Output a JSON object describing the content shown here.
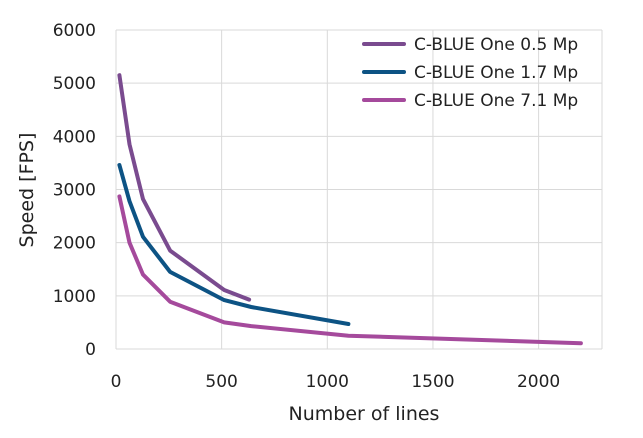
{
  "chart_data": {
    "type": "line",
    "title": "",
    "xlabel": "Number of lines",
    "ylabel": "Speed [FPS]",
    "xlim": [
      0,
      2300
    ],
    "ylim": [
      0,
      6000
    ],
    "x_ticks": [
      0,
      500,
      1000,
      1500,
      2000
    ],
    "y_ticks": [
      0,
      1000,
      2000,
      3000,
      4000,
      5000,
      6000
    ],
    "grid": true,
    "legend_position": "top-right",
    "series": [
      {
        "name": "C-BLUE One 0.5 Mp",
        "color": "#7a4b8f",
        "x": [
          16,
          64,
          128,
          256,
          512,
          630
        ],
        "y": [
          5150,
          3850,
          2820,
          1850,
          1110,
          930
        ]
      },
      {
        "name": "C-BLUE One 1.7 Mp",
        "color": "#0d5384",
        "x": [
          16,
          64,
          128,
          256,
          512,
          640,
          1100
        ],
        "y": [
          3460,
          2780,
          2110,
          1450,
          920,
          790,
          470
        ]
      },
      {
        "name": "C-BLUE One 7.1 Mp",
        "color": "#a54a9c",
        "x": [
          16,
          64,
          128,
          256,
          512,
          640,
          1100,
          2200
        ],
        "y": [
          2870,
          2000,
          1400,
          890,
          500,
          430,
          250,
          110
        ]
      }
    ]
  }
}
